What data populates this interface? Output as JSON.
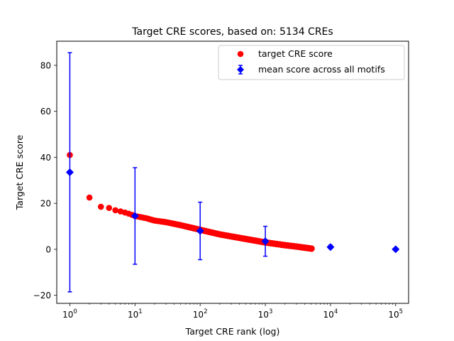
{
  "chart_data": {
    "type": "scatter",
    "title": "Target CRE scores, based on: 5134 CREs",
    "xlabel": "Target CRE rank (log)",
    "ylabel": "Target CRE score",
    "x_scale": "log",
    "xlim": [
      0.63,
      158000
    ],
    "ylim": [
      -23.5,
      90.5
    ],
    "x_ticks": [
      1,
      10,
      100,
      1000,
      10000,
      100000
    ],
    "x_tick_bases": [
      "10",
      "10",
      "10",
      "10",
      "10",
      "10"
    ],
    "x_tick_exponents": [
      "0",
      "1",
      "2",
      "3",
      "4",
      "5"
    ],
    "y_ticks": [
      -20,
      0,
      20,
      40,
      60,
      80
    ],
    "y_tick_labels": [
      "−20",
      "0",
      "20",
      "40",
      "60",
      "80"
    ],
    "grid": false,
    "legend_position": "upper right",
    "series": [
      {
        "name": "target CRE score",
        "kind": "points",
        "color": "#ff0000",
        "anchors": [
          [
            1,
            41
          ],
          [
            2,
            22.5
          ],
          [
            3,
            18.5
          ],
          [
            4,
            18
          ],
          [
            5,
            17
          ],
          [
            6,
            16.5
          ],
          [
            7,
            16
          ],
          [
            8,
            15.5
          ],
          [
            10,
            14.5
          ],
          [
            15,
            13.5
          ],
          [
            20,
            12.5
          ],
          [
            30,
            11.8
          ],
          [
            50,
            10.5
          ],
          [
            100,
            8.5
          ],
          [
            200,
            6.5
          ],
          [
            500,
            4.5
          ],
          [
            1000,
            3
          ],
          [
            2000,
            1.8
          ],
          [
            3000,
            1.2
          ],
          [
            5134,
            0.3
          ]
        ]
      },
      {
        "name": "mean score across all motifs",
        "kind": "errorbar",
        "color": "#0000ff",
        "points": [
          {
            "x": 1,
            "y": 33.5,
            "err": 52
          },
          {
            "x": 10,
            "y": 14.5,
            "err": 21
          },
          {
            "x": 100,
            "y": 8,
            "err": 12.5
          },
          {
            "x": 1000,
            "y": 3.5,
            "err": 6.5
          },
          {
            "x": 10000,
            "y": 1,
            "err": 0.8
          },
          {
            "x": 100000,
            "y": 0,
            "err": 0
          }
        ]
      }
    ]
  }
}
